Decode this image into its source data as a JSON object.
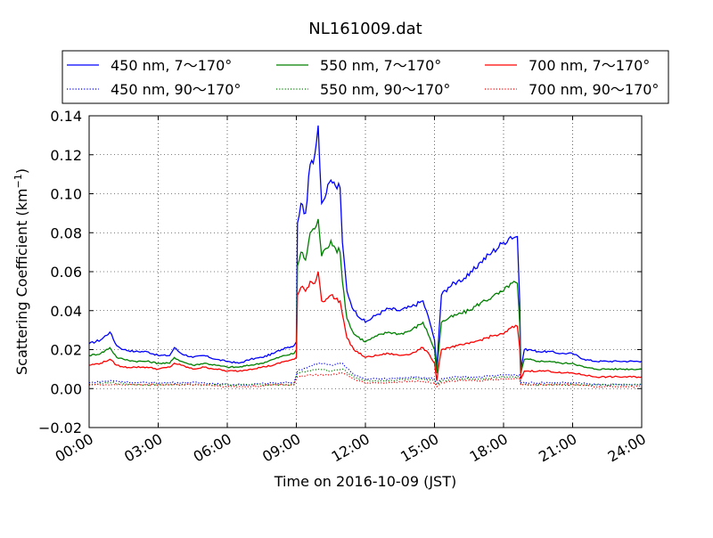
{
  "chart_data": {
    "type": "line",
    "title": "NL161009.dat",
    "xlabel": "Time on 2016-10-09 (JST)",
    "ylabel_main": "Scattering Coefficient (km",
    "ylabel_sup": "−1",
    "ylabel_close": ")",
    "xlim": [
      0,
      24
    ],
    "ylim": [
      -0.02,
      0.14
    ],
    "x_ticks": [
      0,
      3,
      6,
      9,
      12,
      15,
      18,
      21,
      24
    ],
    "x_tick_labels": [
      "00:00",
      "03:00",
      "06:00",
      "09:00",
      "12:00",
      "15:00",
      "18:00",
      "21:00",
      "24:00"
    ],
    "y_ticks": [
      -0.02,
      0.0,
      0.02,
      0.04,
      0.06,
      0.08,
      0.1,
      0.12,
      0.14
    ],
    "y_tick_labels": [
      "−0.02",
      "0.00",
      "0.02",
      "0.04",
      "0.06",
      "0.08",
      "0.10",
      "0.12",
      "0.14"
    ],
    "grid": true,
    "legend_position": "top",
    "series": [
      {
        "name": "450 nm, 7～170°",
        "color": "#0000ff",
        "style": "solid",
        "x": [
          0,
          0.5,
          0.9,
          1.2,
          1.5,
          2,
          2.5,
          3,
          3.5,
          3.7,
          4,
          4.5,
          5,
          5.5,
          6,
          6.5,
          7,
          7.5,
          8,
          8.5,
          8.9,
          9.0,
          9.05,
          9.2,
          9.4,
          9.6,
          9.8,
          9.95,
          10.1,
          10.3,
          10.5,
          10.7,
          10.9,
          11.0,
          11.2,
          11.5,
          12,
          12.5,
          13,
          13.5,
          14,
          14.5,
          14.8,
          15.0,
          15.1,
          15.2,
          15.3,
          15.6,
          16,
          16.5,
          17,
          17.5,
          18,
          18.3,
          18.6,
          18.7,
          18.75,
          18.9,
          19.1,
          19.5,
          20,
          20.5,
          21,
          21.5,
          22,
          22.5,
          23,
          24
        ],
        "y": [
          0.023,
          0.025,
          0.029,
          0.022,
          0.02,
          0.019,
          0.019,
          0.017,
          0.017,
          0.021,
          0.018,
          0.016,
          0.017,
          0.015,
          0.014,
          0.013,
          0.015,
          0.016,
          0.018,
          0.021,
          0.022,
          0.024,
          0.085,
          0.095,
          0.09,
          0.115,
          0.12,
          0.135,
          0.095,
          0.1,
          0.107,
          0.104,
          0.103,
          0.075,
          0.05,
          0.04,
          0.034,
          0.038,
          0.041,
          0.04,
          0.042,
          0.045,
          0.034,
          0.025,
          0.01,
          0.03,
          0.048,
          0.052,
          0.055,
          0.058,
          0.065,
          0.07,
          0.075,
          0.078,
          0.078,
          0.045,
          0.01,
          0.02,
          0.02,
          0.019,
          0.019,
          0.018,
          0.018,
          0.015,
          0.014,
          0.014,
          0.014,
          0.014
        ]
      },
      {
        "name": "550 nm, 7～170°",
        "color": "#008000",
        "style": "solid",
        "x": [
          0,
          0.5,
          0.9,
          1.2,
          1.5,
          2,
          2.5,
          3,
          3.5,
          3.7,
          4,
          4.5,
          5,
          5.5,
          6,
          6.5,
          7,
          7.5,
          8,
          8.5,
          8.9,
          9.0,
          9.05,
          9.2,
          9.4,
          9.6,
          9.8,
          9.95,
          10.1,
          10.3,
          10.5,
          10.7,
          10.9,
          11.0,
          11.2,
          11.5,
          12,
          12.5,
          13,
          13.5,
          14,
          14.5,
          14.8,
          15.0,
          15.1,
          15.2,
          15.3,
          15.6,
          16,
          16.5,
          17,
          17.5,
          18,
          18.3,
          18.6,
          18.7,
          18.75,
          18.9,
          19.1,
          19.5,
          20,
          20.5,
          21,
          21.5,
          22,
          22.5,
          23,
          24
        ],
        "y": [
          0.017,
          0.018,
          0.021,
          0.016,
          0.015,
          0.014,
          0.014,
          0.013,
          0.013,
          0.016,
          0.014,
          0.012,
          0.013,
          0.012,
          0.011,
          0.011,
          0.012,
          0.013,
          0.015,
          0.017,
          0.018,
          0.02,
          0.063,
          0.07,
          0.066,
          0.08,
          0.082,
          0.087,
          0.068,
          0.072,
          0.076,
          0.072,
          0.07,
          0.055,
          0.036,
          0.028,
          0.024,
          0.027,
          0.029,
          0.028,
          0.03,
          0.034,
          0.026,
          0.02,
          0.008,
          0.022,
          0.034,
          0.036,
          0.038,
          0.04,
          0.044,
          0.047,
          0.05,
          0.054,
          0.054,
          0.034,
          0.008,
          0.015,
          0.015,
          0.014,
          0.014,
          0.013,
          0.013,
          0.011,
          0.01,
          0.01,
          0.01,
          0.01
        ]
      },
      {
        "name": "700 nm, 7～170°",
        "color": "#ff0000",
        "style": "solid",
        "x": [
          0,
          0.5,
          0.9,
          1.2,
          1.5,
          2,
          2.5,
          3,
          3.5,
          3.7,
          4,
          4.5,
          5,
          5.5,
          6,
          6.5,
          7,
          7.5,
          8,
          8.5,
          8.9,
          9.0,
          9.05,
          9.2,
          9.4,
          9.6,
          9.8,
          9.95,
          10.1,
          10.3,
          10.5,
          10.7,
          10.9,
          11.0,
          11.2,
          11.5,
          12,
          12.5,
          13,
          13.5,
          14,
          14.5,
          14.8,
          15.0,
          15.1,
          15.2,
          15.3,
          15.6,
          16,
          16.5,
          17,
          17.5,
          18,
          18.3,
          18.6,
          18.7,
          18.75,
          18.9,
          19.1,
          19.5,
          20,
          20.5,
          21,
          21.5,
          22,
          22.5,
          23,
          24
        ],
        "y": [
          0.012,
          0.013,
          0.015,
          0.012,
          0.011,
          0.011,
          0.011,
          0.01,
          0.011,
          0.013,
          0.012,
          0.01,
          0.011,
          0.01,
          0.009,
          0.009,
          0.01,
          0.011,
          0.012,
          0.014,
          0.015,
          0.016,
          0.048,
          0.052,
          0.05,
          0.055,
          0.054,
          0.06,
          0.045,
          0.046,
          0.048,
          0.046,
          0.045,
          0.038,
          0.026,
          0.02,
          0.016,
          0.017,
          0.018,
          0.017,
          0.018,
          0.021,
          0.017,
          0.013,
          0.004,
          0.013,
          0.02,
          0.021,
          0.022,
          0.023,
          0.025,
          0.027,
          0.028,
          0.031,
          0.032,
          0.021,
          0.005,
          0.009,
          0.009,
          0.009,
          0.009,
          0.008,
          0.008,
          0.007,
          0.006,
          0.006,
          0.006,
          0.006
        ]
      },
      {
        "name": "450 nm, 90～170°",
        "color": "#0000ff",
        "style": "dotted",
        "x": [
          0,
          1,
          2,
          3,
          4,
          5,
          6,
          7,
          8,
          8.9,
          9.05,
          9.5,
          10,
          10.5,
          11,
          11.5,
          12,
          13,
          14,
          15,
          15.1,
          15.3,
          16,
          17,
          18,
          18.7,
          18.75,
          19,
          20,
          21,
          22,
          23,
          24
        ],
        "y": [
          0.003,
          0.004,
          0.003,
          0.003,
          0.003,
          0.003,
          0.002,
          0.002,
          0.003,
          0.003,
          0.009,
          0.011,
          0.013,
          0.012,
          0.013,
          0.007,
          0.005,
          0.005,
          0.006,
          0.005,
          0.002,
          0.005,
          0.006,
          0.006,
          0.007,
          0.007,
          0.003,
          0.003,
          0.003,
          0.003,
          0.002,
          0.002,
          0.002
        ]
      },
      {
        "name": "550 nm, 90～170°",
        "color": "#008000",
        "style": "dotted",
        "x": [
          0,
          1,
          2,
          3,
          4,
          5,
          6,
          7,
          8,
          8.9,
          9.05,
          9.5,
          10,
          10.5,
          11,
          11.5,
          12,
          13,
          14,
          15,
          15.1,
          15.3,
          16,
          17,
          18,
          18.7,
          18.75,
          19,
          20,
          21,
          22,
          23,
          24
        ],
        "y": [
          0.002,
          0.003,
          0.002,
          0.002,
          0.002,
          0.002,
          0.002,
          0.002,
          0.002,
          0.002,
          0.008,
          0.009,
          0.01,
          0.009,
          0.01,
          0.006,
          0.004,
          0.004,
          0.005,
          0.004,
          0.002,
          0.004,
          0.005,
          0.005,
          0.006,
          0.006,
          0.002,
          0.002,
          0.002,
          0.002,
          0.002,
          0.002,
          0.002
        ]
      },
      {
        "name": "700 nm, 90～170°",
        "color": "#ff0000",
        "style": "dotted",
        "x": [
          0,
          1,
          2,
          3,
          4,
          5,
          6,
          7,
          8,
          8.9,
          9.05,
          9.5,
          10,
          10.5,
          11,
          11.5,
          12,
          13,
          14,
          15,
          15.1,
          15.3,
          16,
          17,
          18,
          18.7,
          18.75,
          19,
          20,
          21,
          22,
          23,
          24
        ],
        "y": [
          0.002,
          0.002,
          0.002,
          0.002,
          0.002,
          0.002,
          0.001,
          0.001,
          0.002,
          0.002,
          0.006,
          0.007,
          0.007,
          0.007,
          0.008,
          0.005,
          0.003,
          0.003,
          0.004,
          0.003,
          0.001,
          0.003,
          0.004,
          0.004,
          0.005,
          0.005,
          0.002,
          0.002,
          0.002,
          0.002,
          0.001,
          0.001,
          0.001
        ]
      }
    ]
  }
}
